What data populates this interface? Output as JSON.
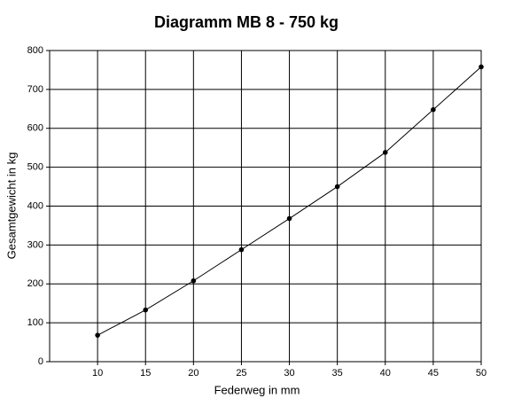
{
  "chart_data": {
    "type": "line",
    "title": "Diagramm MB 8 - 750 kg",
    "x_label": "Federweg in mm",
    "y_label": "Gesamtgewicht in kg",
    "x": [
      10,
      15,
      20,
      25,
      30,
      35,
      40,
      45,
      50
    ],
    "series": [
      {
        "name": "MB 8 - 750 kg",
        "color": "#000000",
        "values": [
          68,
          133,
          208,
          288,
          368,
          450,
          538,
          648,
          758
        ]
      }
    ],
    "xlim": [
      5,
      50
    ],
    "xticks": [
      10,
      15,
      20,
      25,
      30,
      35,
      40,
      45,
      50
    ],
    "ylim": [
      0,
      800
    ],
    "yticks": [
      0,
      100,
      200,
      300,
      400,
      500,
      600,
      700,
      800
    ],
    "grid": true,
    "markers": true
  }
}
